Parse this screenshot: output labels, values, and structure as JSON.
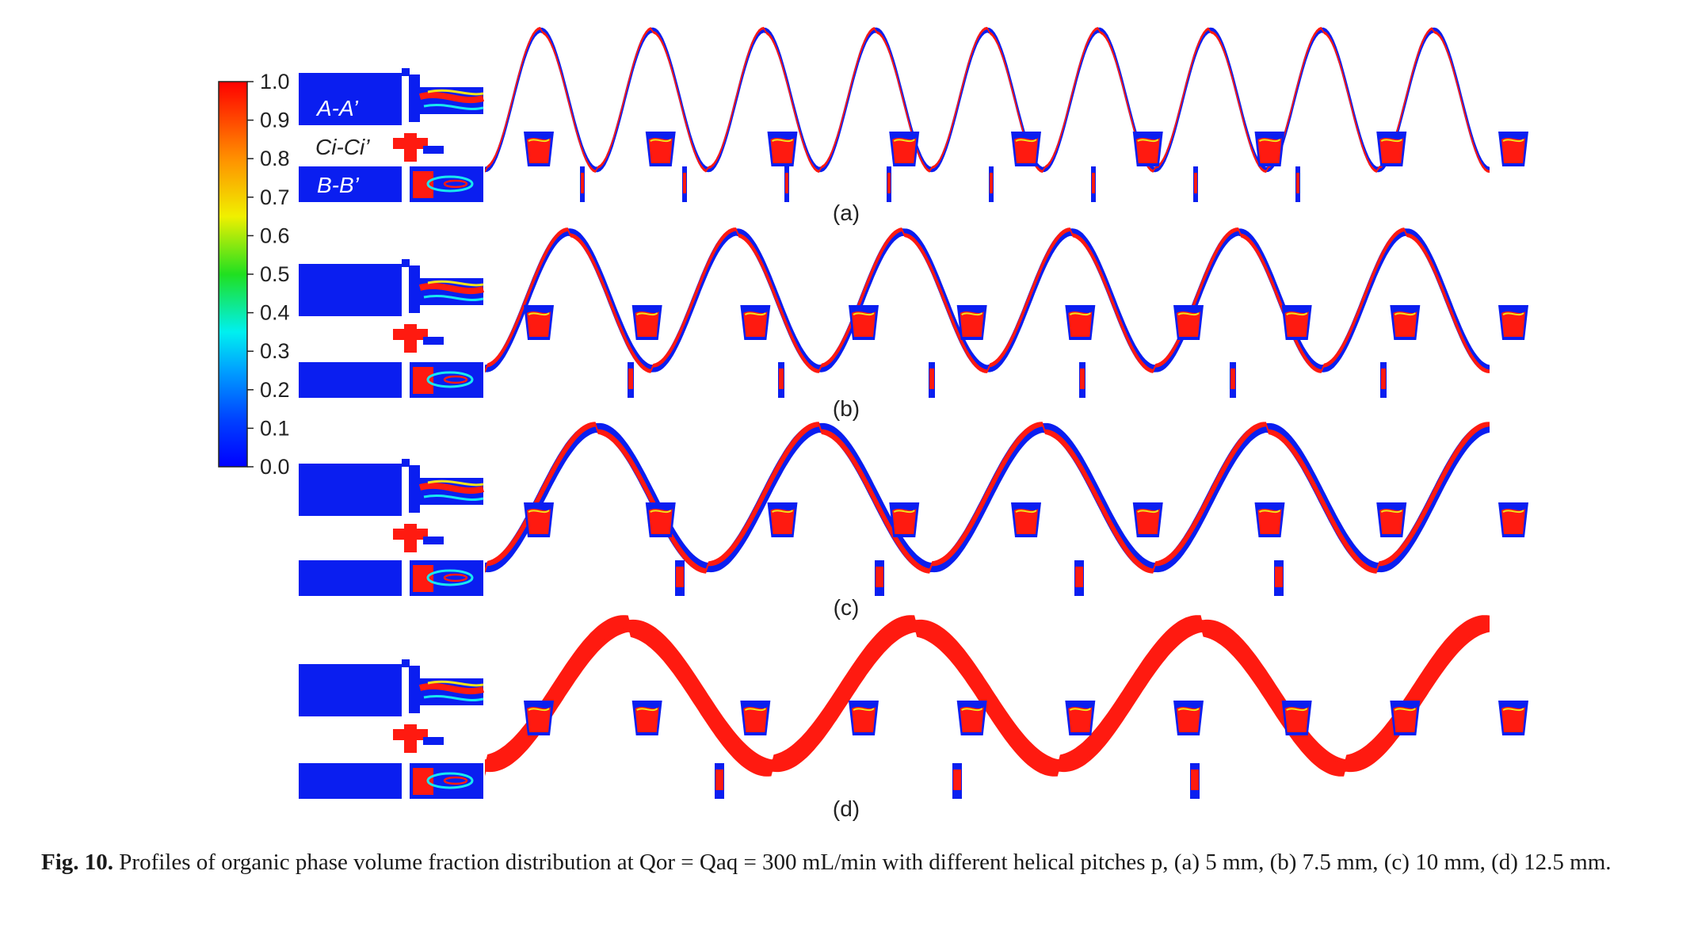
{
  "colorbar": {
    "ticks": [
      "1.0",
      "0.9",
      "0.8",
      "0.7",
      "0.6",
      "0.5",
      "0.4",
      "0.3",
      "0.2",
      "0.1",
      "0.0"
    ]
  },
  "section_labels": {
    "aa": "A-A’",
    "ci": "Ci-Ci’",
    "bb": "B-B’"
  },
  "panels": [
    {
      "label": "(a)",
      "pitch_mm": 5,
      "periods": 9
    },
    {
      "label": "(b)",
      "pitch_mm": 7.5,
      "periods": 6
    },
    {
      "label": "(c)",
      "pitch_mm": 10,
      "periods": 4.5
    },
    {
      "label": "(d)",
      "pitch_mm": 12.5,
      "periods": 3.5
    }
  ],
  "colors": {
    "low": "#0a1ef0",
    "high": "#ff1a10",
    "mid": "#38e000",
    "cyan": "#18e8f0",
    "yellow": "#f2e21c",
    "text": "#222222"
  },
  "caption": {
    "label": "Fig. 10.",
    "text": "Profiles of organic phase volume fraction distribution at Qor = Qaq = 300 mL/min with different helical pitches p, (a) 5 mm, (b) 7.5 mm, (c) 10 mm, (d) 12.5 mm."
  }
}
